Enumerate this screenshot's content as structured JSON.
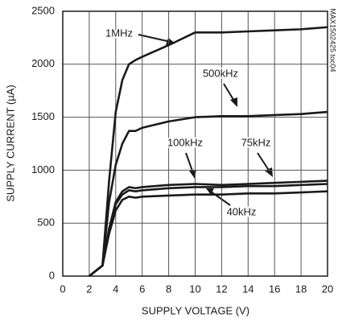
{
  "chart_data": {
    "type": "line",
    "x_label": "SUPPLY VOLTAGE (V)",
    "y_label": "SUPPLY CURRENT (µA)",
    "note": "MAX1502425 toc04",
    "x": [
      2,
      3,
      3.5,
      4,
      4.5,
      5,
      5.5,
      6,
      8,
      10,
      12,
      14,
      16,
      18,
      20
    ],
    "series": [
      {
        "name": "1MHz",
        "color": "#1a1a1a",
        "values": [
          0,
          100,
          900,
          1550,
          1850,
          2000,
          2040,
          2070,
          2180,
          2300,
          2300,
          2310,
          2320,
          2330,
          2350
        ]
      },
      {
        "name": "500kHz",
        "color": "#1a1a1a",
        "values": [
          0,
          100,
          700,
          1050,
          1250,
          1370,
          1370,
          1400,
          1460,
          1500,
          1510,
          1510,
          1520,
          1530,
          1550
        ]
      },
      {
        "name": "100kHz",
        "color": "#1a1a1a",
        "values": [
          0,
          100,
          450,
          700,
          800,
          840,
          830,
          840,
          860,
          870,
          860,
          870,
          880,
          890,
          900
        ]
      },
      {
        "name": "75kHz",
        "color": "#1a1a1a",
        "values": [
          0,
          100,
          430,
          680,
          770,
          810,
          800,
          810,
          830,
          840,
          840,
          850,
          850,
          860,
          870
        ]
      },
      {
        "name": "40kHz",
        "color": "#1a1a1a",
        "values": [
          0,
          100,
          400,
          620,
          720,
          750,
          740,
          750,
          760,
          770,
          770,
          780,
          780,
          790,
          800
        ]
      }
    ],
    "xlim": [
      0,
      20
    ],
    "xticks": [
      0,
      2,
      4,
      6,
      8,
      10,
      12,
      14,
      16,
      18,
      20
    ],
    "ylim": [
      0,
      2500
    ],
    "yticks": [
      0,
      500,
      1000,
      1500,
      2000,
      2500
    ],
    "grid": true
  }
}
